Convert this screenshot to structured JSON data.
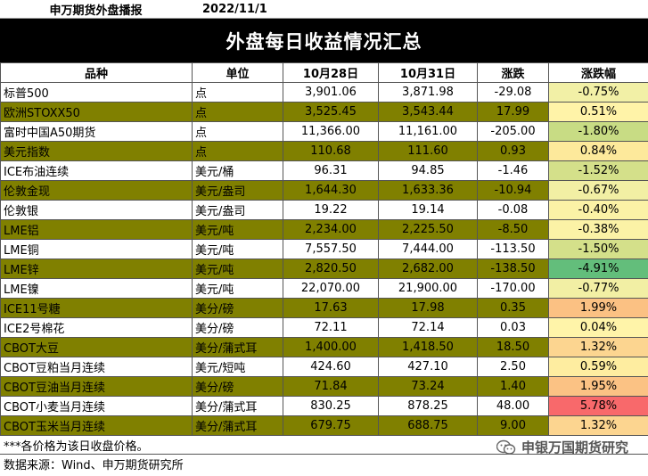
{
  "header": {
    "brand": "申万期货外盘播报",
    "date": "2022/11/1",
    "title": "外盘每日收益情况汇总"
  },
  "columns": [
    "品种",
    "单位",
    "10月28日",
    "10月31日",
    "涨跌",
    "涨跌幅"
  ],
  "rows": [
    {
      "name": "标普500",
      "unit": "点",
      "v1": "3,901.06",
      "v2": "3,871.98",
      "chg": "-29.08",
      "pct": "-0.75%",
      "pct_color": "#f2f0a6",
      "style": "white"
    },
    {
      "name": "欧洲STOXX50",
      "unit": "点",
      "v1": "3,525.45",
      "v2": "3,543.44",
      "chg": "17.99",
      "pct": "0.51%",
      "pct_color": "#fff3a8",
      "style": "olive"
    },
    {
      "name": "富时中国A50期货",
      "unit": "点",
      "v1": "11,366.00",
      "v2": "11,161.00",
      "chg": "-205.00",
      "pct": "-1.80%",
      "pct_color": "#c8dc84",
      "style": "white"
    },
    {
      "name": "美元指数",
      "unit": "点",
      "v1": "110.68",
      "v2": "111.60",
      "chg": "0.93",
      "pct": "0.84%",
      "pct_color": "#fde99b",
      "style": "olive"
    },
    {
      "name": "ICE布油连续",
      "unit": "美元/桶",
      "v1": "96.31",
      "v2": "94.85",
      "chg": "-1.46",
      "pct": "-1.52%",
      "pct_color": "#d4e08a",
      "style": "white"
    },
    {
      "name": "伦敦金现",
      "unit": "美元/盎司",
      "v1": "1,644.30",
      "v2": "1,633.36",
      "chg": "-10.94",
      "pct": "-0.67%",
      "pct_color": "#f2efa4",
      "style": "olive"
    },
    {
      "name": "伦敦银",
      "unit": "美元/盎司",
      "v1": "19.22",
      "v2": "19.14",
      "chg": "-0.08",
      "pct": "-0.40%",
      "pct_color": "#fbf2a6",
      "style": "white"
    },
    {
      "name": "LME铝",
      "unit": "美元/吨",
      "v1": "2,234.00",
      "v2": "2,225.50",
      "chg": "-8.50",
      "pct": "-0.38%",
      "pct_color": "#fbf2a6",
      "style": "olive"
    },
    {
      "name": "LME铜",
      "unit": "美元/吨",
      "v1": "7,557.50",
      "v2": "7,444.00",
      "chg": "-113.50",
      "pct": "-1.50%",
      "pct_color": "#d4e08a",
      "style": "white"
    },
    {
      "name": "LME锌",
      "unit": "美元/吨",
      "v1": "2,820.50",
      "v2": "2,682.00",
      "chg": "-138.50",
      "pct": "-4.91%",
      "pct_color": "#63be7b",
      "style": "olive"
    },
    {
      "name": "LME镍",
      "unit": "美元/吨",
      "v1": "22,070.00",
      "v2": "21,900.00",
      "chg": "-170.00",
      "pct": "-0.77%",
      "pct_color": "#f2efa4",
      "style": "white"
    },
    {
      "name": "ICE11号糖",
      "unit": "美分/磅",
      "v1": "17.63",
      "v2": "17.98",
      "chg": "0.35",
      "pct": "1.99%",
      "pct_color": "#fbc183",
      "style": "olive"
    },
    {
      "name": "ICE2号棉花",
      "unit": "美分/磅",
      "v1": "72.11",
      "v2": "72.14",
      "chg": "0.03",
      "pct": "0.04%",
      "pct_color": "#fff4a9",
      "style": "white"
    },
    {
      "name": "CBOT大豆",
      "unit": "美分/蒲式耳",
      "v1": "1,400.00",
      "v2": "1,418.50",
      "chg": "18.50",
      "pct": "1.32%",
      "pct_color": "#fcd590",
      "style": "olive"
    },
    {
      "name": "CBOT豆粕当月连续",
      "unit": "美元/短吨",
      "v1": "424.60",
      "v2": "427.10",
      "chg": "2.50",
      "pct": "0.59%",
      "pct_color": "#feeda0",
      "style": "white"
    },
    {
      "name": "CBOT豆油当月连续",
      "unit": "美分/磅",
      "v1": "71.84",
      "v2": "73.24",
      "chg": "1.40",
      "pct": "1.95%",
      "pct_color": "#fbc284",
      "style": "olive"
    },
    {
      "name": "CBOT小麦当月连续",
      "unit": "美分/蒲式耳",
      "v1": "830.25",
      "v2": "878.25",
      "chg": "48.00",
      "pct": "5.78%",
      "pct_color": "#f8696b",
      "style": "white"
    },
    {
      "name": "CBOT玉米当月连续",
      "unit": "美分/蒲式耳",
      "v1": "679.75",
      "v2": "688.75",
      "chg": "9.00",
      "pct": "1.32%",
      "pct_color": "#fcd590",
      "style": "olive"
    }
  ],
  "footer": {
    "note": "***各价格为该日收盘价格。",
    "source": "数据来源：Wind、申万期货研究所"
  },
  "watermark": {
    "text": "申银万国期货研究",
    "icon": "wechat-icon"
  }
}
